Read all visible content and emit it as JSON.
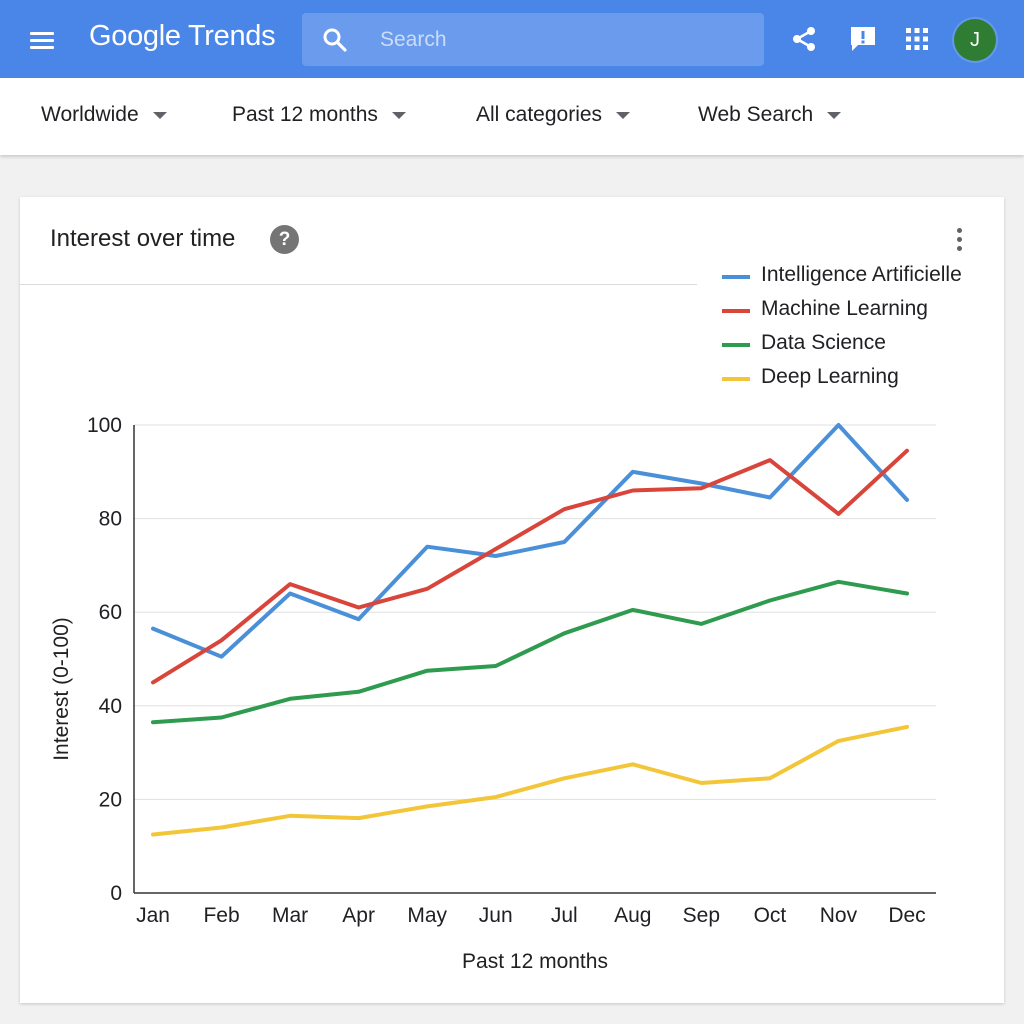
{
  "appbar": {
    "logo_google": "Google",
    "logo_trends": "Trends",
    "search_placeholder": "Search",
    "avatar_initial": "J"
  },
  "filters": {
    "region": "Worldwide",
    "time": "Past 12 months",
    "category": "All categories",
    "property": "Web Search"
  },
  "card": {
    "title": "Interest over time",
    "help_symbol": "?"
  },
  "chart_data": {
    "type": "line",
    "title": "Interest over time",
    "xlabel": "Past 12 months",
    "ylabel": "Interest (0-100)",
    "ylim": [
      0,
      100
    ],
    "yticks": [
      0,
      20,
      40,
      60,
      80,
      100
    ],
    "grid": true,
    "legend_position": "top-right",
    "categories": [
      "Jan",
      "Feb",
      "Mar",
      "Apr",
      "May",
      "Jun",
      "Jul",
      "Aug",
      "Sep",
      "Oct",
      "Nov",
      "Dec"
    ],
    "series": [
      {
        "name": "Intelligence Artificielle",
        "color": "#4a90d9",
        "values": [
          56.5,
          50.5,
          64,
          58.5,
          74,
          72,
          75,
          90,
          87.5,
          84.5,
          100,
          84
        ]
      },
      {
        "name": "Machine Learning",
        "color": "#d9453a",
        "values": [
          45,
          54,
          66,
          61,
          65,
          73.5,
          82,
          86,
          86.5,
          92.5,
          81,
          94.5
        ]
      },
      {
        "name": "Data Science",
        "color": "#2e9b4f",
        "values": [
          36.5,
          37.5,
          41.5,
          43,
          47.5,
          48.5,
          55.5,
          60.5,
          57.5,
          62.5,
          66.5,
          64
        ]
      },
      {
        "name": "Deep Learning",
        "color": "#f3c639",
        "values": [
          12.5,
          14,
          16.5,
          16,
          18.5,
          20.5,
          24.5,
          27.5,
          23.5,
          24.5,
          32.5,
          35.5
        ]
      }
    ]
  }
}
